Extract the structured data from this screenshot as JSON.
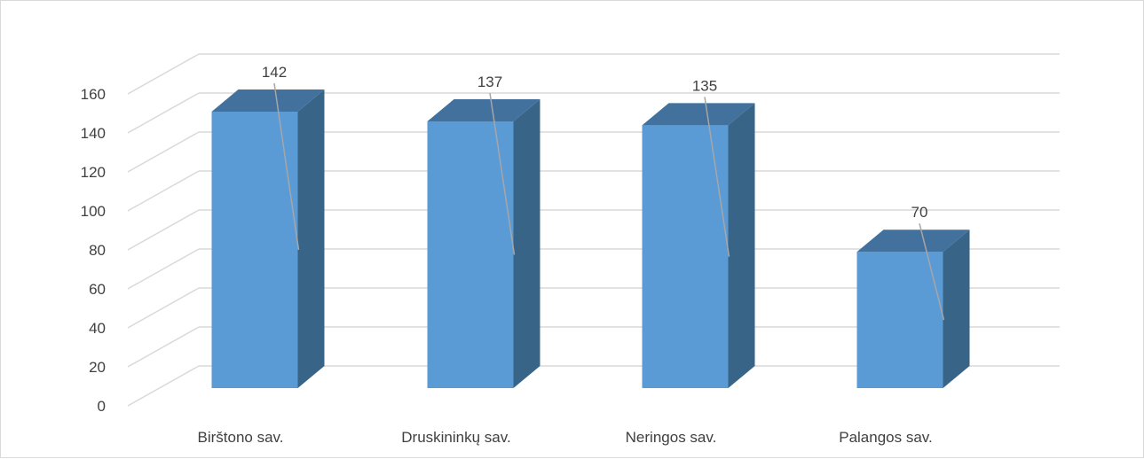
{
  "chart_data": {
    "type": "bar",
    "style": "3d-column",
    "categories": [
      "Birštono sav.",
      "Druskininkų sav.",
      "Neringos sav.",
      "Palangos sav."
    ],
    "values": [
      142,
      137,
      135,
      70
    ],
    "data_labels": [
      "142",
      "137",
      "135",
      "70"
    ],
    "ylim": [
      0,
      160
    ],
    "yticks": [
      "0",
      "20",
      "40",
      "60",
      "80",
      "100",
      "120",
      "140",
      "160"
    ],
    "title": "",
    "xlabel": "",
    "ylabel": "",
    "grid": true,
    "legend": "none",
    "colors": {
      "bar_front": "#5b9bd5",
      "bar_side": "#386487",
      "bar_top": "#41719c",
      "grid": "#d9d9d9",
      "leader_line": "#a6a6a6",
      "text": "#404040"
    }
  }
}
